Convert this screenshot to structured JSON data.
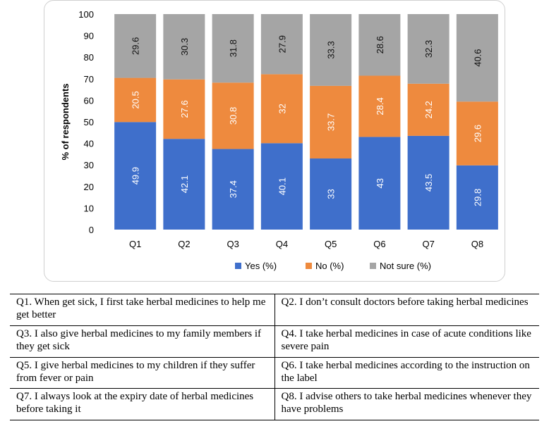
{
  "chart_data": {
    "type": "bar",
    "stacked": true,
    "categories": [
      "Q1",
      "Q2",
      "Q3",
      "Q4",
      "Q5",
      "Q6",
      "Q7",
      "Q8"
    ],
    "series": [
      {
        "name": "Yes (%)",
        "color": "#3F6FCB",
        "values": [
          49.9,
          42.1,
          37.4,
          40.1,
          33,
          43,
          43.5,
          29.8
        ],
        "labels": [
          "49.9",
          "42.1",
          "37.4",
          "40.1",
          "33",
          "43",
          "43.5",
          "29.8"
        ]
      },
      {
        "name": "No (%)",
        "color": "#EE8A3E",
        "values": [
          20.5,
          27.6,
          30.8,
          32,
          33.7,
          28.4,
          24.2,
          29.6
        ],
        "labels": [
          "20.5",
          "27.6",
          "30.8",
          "32",
          "33.7",
          "28.4",
          "24.2",
          "29.6"
        ]
      },
      {
        "name": "Not sure (%)",
        "color": "#A5A5A5",
        "values": [
          29.6,
          30.3,
          31.8,
          27.9,
          33.3,
          28.6,
          32.3,
          40.6
        ],
        "labels": [
          "29.6",
          "30.3",
          "31.8",
          "27.9",
          "33.3",
          "28.6",
          "32.3",
          "40.6"
        ]
      }
    ],
    "ylabel": "% of respondents",
    "ylim": [
      0,
      100
    ],
    "yticks": [
      "0",
      "10",
      "20",
      "30",
      "40",
      "50",
      "60",
      "70",
      "80",
      "90",
      "100"
    ],
    "legend_position": "bottom"
  },
  "questions": [
    [
      "Q1. When get sick, I first take herbal medicines to help me get better",
      "Q2. I don’t consult doctors before taking herbal medicines"
    ],
    [
      "Q3. I also give herbal medicines to my family members if they get sick",
      "Q4. I take herbal medicines in case of acute conditions like severe pain"
    ],
    [
      "Q5. I give herbal medicines to my children if they suffer from fever or pain",
      "Q6. I take herbal medicines according to the instruction on the label"
    ],
    [
      "Q7. I always look at the expiry date of herbal medicines before taking it",
      "Q8. I advise others to take herbal medicines whenever they have problems"
    ]
  ]
}
